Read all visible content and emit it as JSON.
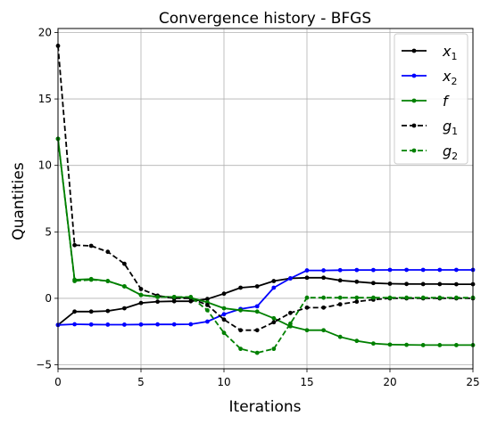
{
  "chart_data": {
    "type": "line",
    "title": "Convergence history - BFGS",
    "xlabel": "Iterations",
    "ylabel": "Quantities",
    "xlim": [
      0,
      25
    ],
    "ylim": [
      -5.3,
      20.3
    ],
    "xticks": [
      0,
      5,
      10,
      15,
      20,
      25
    ],
    "yticks": [
      -5,
      0,
      5,
      10,
      15,
      20
    ],
    "grid": true,
    "legend_position": "top-right",
    "x": [
      0,
      1,
      2,
      3,
      4,
      5,
      6,
      7,
      8,
      9,
      10,
      11,
      12,
      13,
      14,
      15,
      16,
      17,
      18,
      19,
      20,
      21,
      22,
      23,
      24,
      25
    ],
    "series": [
      {
        "name": "x_1",
        "color": "#000000",
        "dash": "solid",
        "values": [
          -2.0,
          -1.0,
          -1.0,
          -0.95,
          -0.75,
          -0.35,
          -0.25,
          -0.22,
          -0.22,
          -0.05,
          0.35,
          0.8,
          0.9,
          1.3,
          1.5,
          1.55,
          1.55,
          1.35,
          1.25,
          1.15,
          1.1,
          1.08,
          1.07,
          1.07,
          1.06,
          1.06
        ]
      },
      {
        "name": "x_2",
        "color": "#0000ff",
        "dash": "solid",
        "values": [
          -2.0,
          -1.95,
          -1.97,
          -1.98,
          -1.98,
          -1.97,
          -1.96,
          -1.96,
          -1.95,
          -1.75,
          -1.2,
          -0.8,
          -0.6,
          0.8,
          1.5,
          2.1,
          2.1,
          2.12,
          2.13,
          2.13,
          2.14,
          2.14,
          2.14,
          2.14,
          2.14,
          2.14
        ]
      },
      {
        "name": "f",
        "color": "#008000",
        "dash": "solid",
        "values": [
          12.0,
          1.4,
          1.45,
          1.3,
          0.9,
          0.25,
          0.12,
          0.1,
          0.05,
          -0.3,
          -0.75,
          -0.9,
          -1.0,
          -1.5,
          -2.1,
          -2.4,
          -2.4,
          -2.9,
          -3.2,
          -3.4,
          -3.48,
          -3.5,
          -3.52,
          -3.52,
          -3.52,
          -3.52
        ]
      },
      {
        "name": "g_1",
        "color": "#000000",
        "dash": "dashed",
        "values": [
          19.0,
          4.0,
          3.95,
          3.5,
          2.6,
          0.7,
          0.2,
          0.0,
          0.0,
          -0.5,
          -1.6,
          -2.4,
          -2.4,
          -1.8,
          -1.1,
          -0.7,
          -0.7,
          -0.45,
          -0.25,
          -0.1,
          0.0,
          0.0,
          0.0,
          0.0,
          0.0,
          0.0
        ]
      },
      {
        "name": "g_2",
        "color": "#008000",
        "dash": "dashed",
        "values": [
          12.0,
          1.3,
          1.4,
          1.3,
          0.9,
          0.25,
          0.1,
          0.1,
          0.1,
          -0.9,
          -2.6,
          -3.8,
          -4.1,
          -3.8,
          -1.9,
          0.05,
          0.05,
          0.05,
          0.05,
          0.05,
          0.05,
          0.05,
          0.05,
          0.05,
          0.05,
          0.05
        ]
      }
    ]
  }
}
